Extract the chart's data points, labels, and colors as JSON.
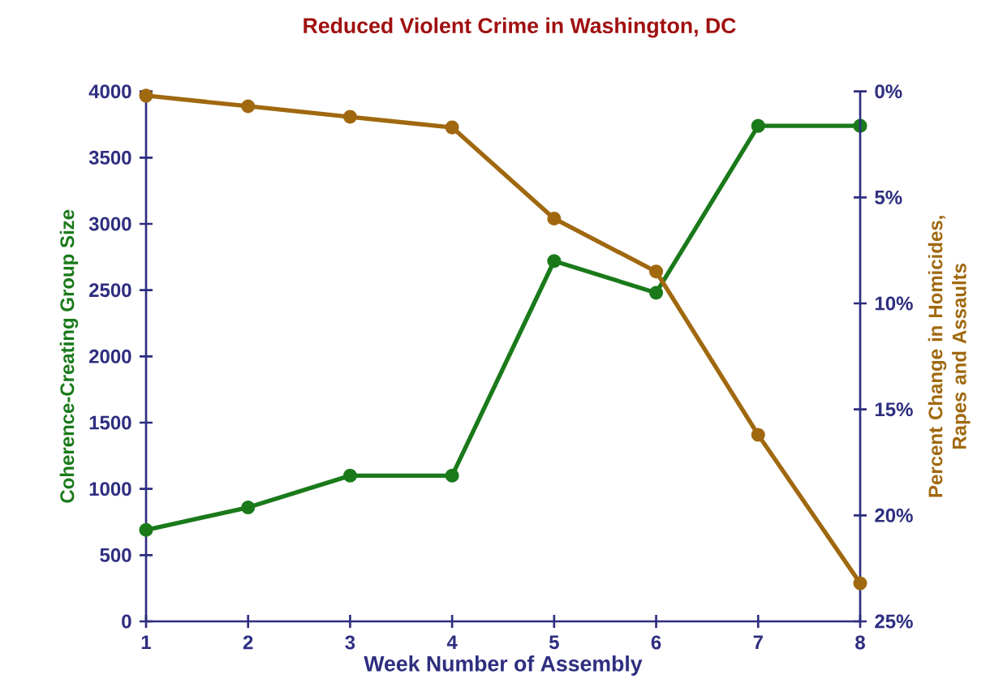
{
  "chart_data": {
    "type": "line",
    "title": "Reduced Violent Crime in Washington, DC",
    "xlabel": "Week Number of Assembly",
    "ylabel": "Coherence-Creating Group Size",
    "y2label": "Percent Change in Homicides, Rapes and Assaults",
    "x": [
      1,
      2,
      3,
      4,
      5,
      6,
      7,
      8
    ],
    "series": [
      {
        "color": "#1a7a1a",
        "values": [
          690,
          860,
          1100,
          1100,
          2720,
          2480,
          3740,
          3740
        ]
      },
      {
        "color": "#a0680f",
        "axis": "y2",
        "values": [
          0.2,
          0.7,
          1.2,
          1.7,
          6.0,
          8.5,
          16.2,
          23.2
        ]
      }
    ],
    "xlim": [
      1,
      8
    ],
    "xticks": [
      1,
      2,
      3,
      4,
      5,
      6,
      7,
      8
    ],
    "ylim": [
      0,
      4000
    ],
    "yticks": [
      0,
      500,
      1000,
      1500,
      2000,
      2500,
      3000,
      3500,
      4000
    ],
    "y2lim": [
      25,
      0
    ],
    "y2ticks": [
      {
        "value": 0,
        "label": "0%"
      },
      {
        "value": 5,
        "label": "5%"
      },
      {
        "value": 10,
        "label": "10%"
      },
      {
        "value": 15,
        "label": "15%"
      },
      {
        "value": 20,
        "label": "20%"
      },
      {
        "value": 25,
        "label": "25%"
      }
    ],
    "marker": "circle",
    "line_style": "solid"
  }
}
